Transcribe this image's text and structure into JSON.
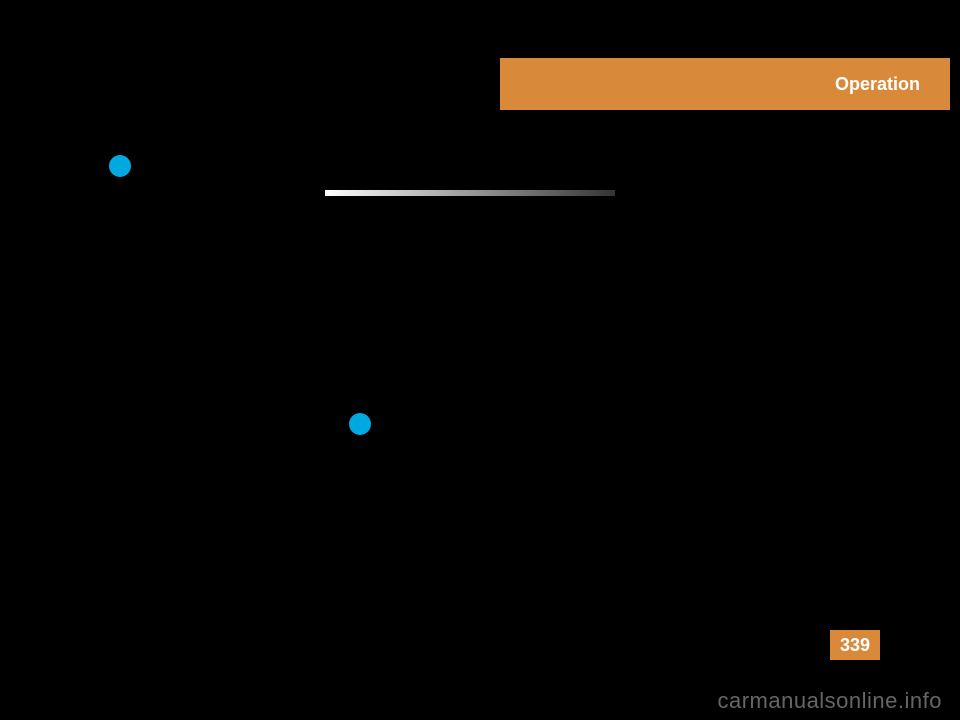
{
  "header": {
    "text": "Operation",
    "bg_color": "#d88a3a",
    "text_color": "#ffffff",
    "font_size": 18
  },
  "gradient_line": {
    "start_color": "#ffffff",
    "end_color": "#333333"
  },
  "bullets": {
    "color": "#00a9e0"
  },
  "page_number": {
    "value": "339",
    "bg_color": "#d88a3a",
    "text_color": "#ffffff",
    "font_size": 18
  },
  "watermark": {
    "text": "carmanualsonline.info"
  }
}
